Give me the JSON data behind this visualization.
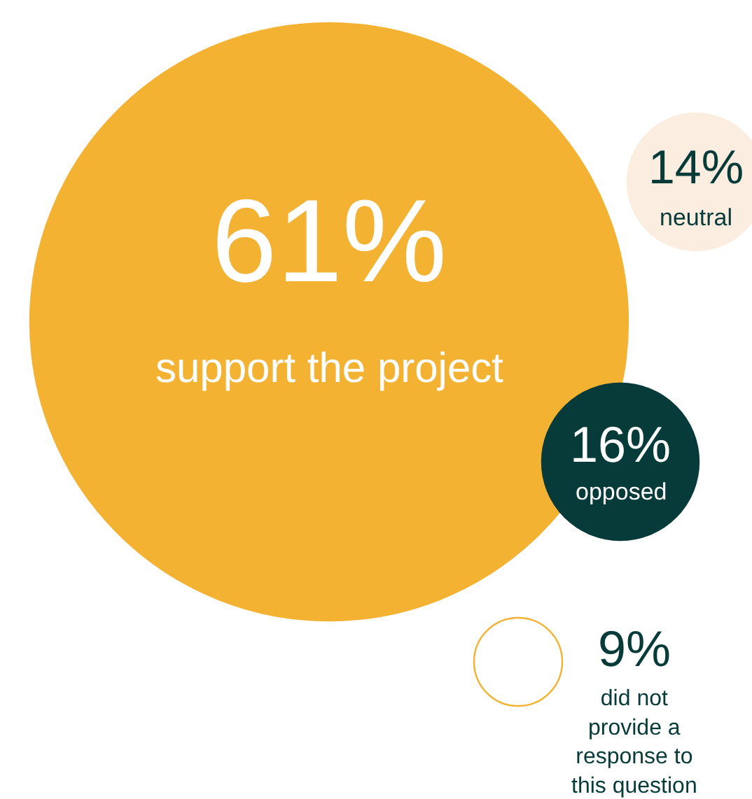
{
  "chart_data": {
    "type": "other",
    "categories": [
      "support the project",
      "neutral",
      "opposed",
      "did not provide a response to this question"
    ],
    "values": [
      61,
      14,
      16,
      9
    ],
    "value_labels": [
      "61%",
      "14%",
      "16%",
      "9%"
    ],
    "colors": [
      "#f4b233",
      "#fbeee0",
      "#063b3a",
      "#f4b233"
    ]
  }
}
